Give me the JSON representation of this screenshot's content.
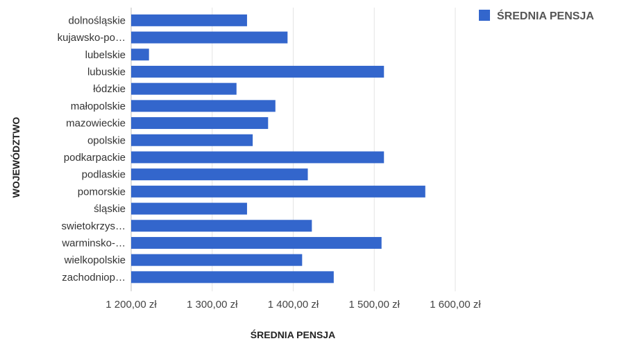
{
  "chart_data": {
    "type": "bar",
    "orientation": "horizontal",
    "categories": [
      "dolnośląskie",
      "kujawsko-po…",
      "lubelskie",
      "lubuskie",
      "łódzkie",
      "małopolskie",
      "mazowieckie",
      "opolskie",
      "podkarpackie",
      "podlaskie",
      "pomorskie",
      "śląskie",
      "swietokrzys…",
      "warminsko-…",
      "wielkopolskie",
      "zachodniop…"
    ],
    "series": [
      {
        "name": "ŚREDNIA PENSJA",
        "color": "#3366cc",
        "values": [
          1343,
          1393,
          1222,
          1512,
          1330,
          1378,
          1369,
          1350,
          1512,
          1418,
          1563,
          1343,
          1423,
          1509,
          1411,
          1450
        ]
      }
    ],
    "xlabel": "ŚREDNIA PENSJA",
    "ylabel": "WOJEWÓDZTWO",
    "xlim": [
      1200,
      1600
    ],
    "xticks": [
      {
        "value": 1200,
        "label": "1 200,00 zł"
      },
      {
        "value": 1300,
        "label": "1 300,00 zł"
      },
      {
        "value": 1400,
        "label": "1 400,00 zł"
      },
      {
        "value": 1500,
        "label": "1 500,00 zł"
      },
      {
        "value": 1600,
        "label": "1 600,00 zł"
      }
    ],
    "grid": true,
    "legend": {
      "position": "top-right",
      "entries": [
        "ŚREDNIA PENSJA"
      ]
    }
  }
}
